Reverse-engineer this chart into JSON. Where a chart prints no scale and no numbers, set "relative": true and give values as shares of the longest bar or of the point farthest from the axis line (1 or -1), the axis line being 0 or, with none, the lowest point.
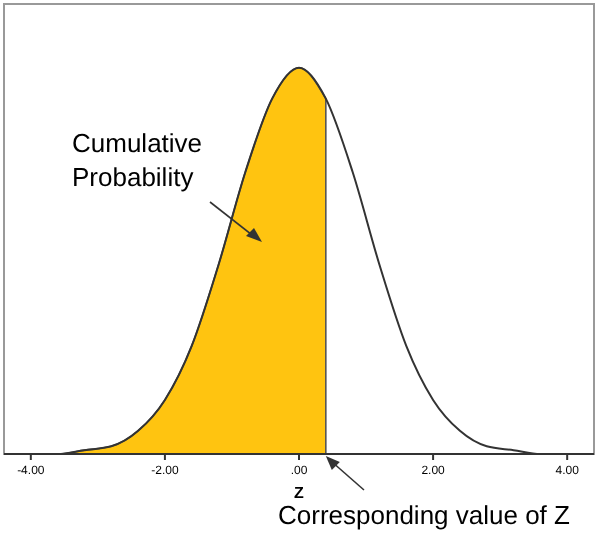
{
  "chart_data": {
    "type": "line",
    "relative": true,
    "xlabel": "Z",
    "xlim": [
      -4.4,
      4.4
    ],
    "xticks": [
      {
        "value": -4,
        "label": "-4.00"
      },
      {
        "value": -2,
        "label": "-2.00"
      },
      {
        "value": 0,
        "label": ".00"
      },
      {
        "value": 2,
        "label": "2.00"
      },
      {
        "value": 4,
        "label": "4.00"
      }
    ],
    "tick_labels": "x",
    "series": [
      {
        "type": "area",
        "color": "#ffc410",
        "x": [
          -4.4,
          -4,
          -3.6,
          -3.2,
          -2.8,
          -2.4,
          -2,
          -1.6,
          -1.2,
          -0.8,
          -0.4,
          0,
          0.4
        ],
        "values": [
          0,
          0,
          0,
          0.01,
          0.02,
          0.06,
          0.14,
          0.28,
          0.49,
          0.73,
          0.92,
          1,
          0.92
        ]
      },
      {
        "color": "#333333",
        "x": [
          -4.4,
          -4,
          -3.6,
          -3.2,
          -2.8,
          -2.4,
          -2,
          -1.6,
          -1.2,
          -0.8,
          -0.4,
          0,
          0.4,
          0.8,
          1.2,
          1.6,
          2,
          2.4,
          2.8,
          3.2,
          3.6,
          4,
          4.4
        ],
        "values": [
          0,
          0,
          0,
          0.01,
          0.02,
          0.06,
          0.14,
          0.28,
          0.49,
          0.73,
          0.92,
          1,
          0.92,
          0.73,
          0.49,
          0.28,
          0.14,
          0.06,
          0.02,
          0.01,
          0,
          0,
          0
        ]
      }
    ],
    "annotations": [
      "Cumulative Probability",
      {
        "text": "Corresponding value of Z",
        "x": 0.4,
        "y": 0
      }
    ]
  }
}
